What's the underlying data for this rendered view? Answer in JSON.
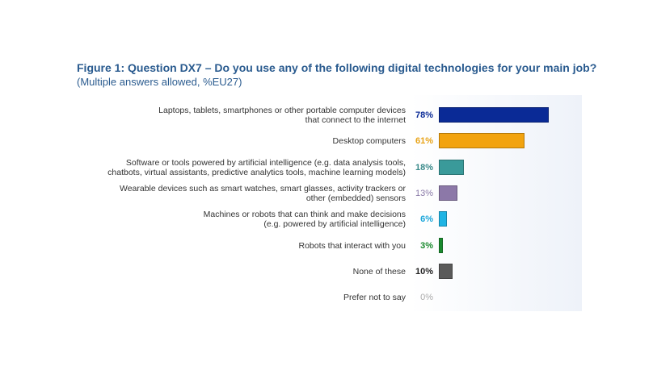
{
  "chart_data": {
    "type": "bar",
    "orientation": "horizontal",
    "title": "Figure 1: Question DX7 – Do you use any of the following digital technologies for your main job?",
    "subtitle": "(Multiple answers allowed, %EU27)",
    "categories": [
      [
        "Laptops, tablets, smartphones or other portable computer devices",
        "that connect to the internet"
      ],
      [
        "Desktop computers"
      ],
      [
        "Software or tools powered by artificial intelligence (e.g. data analysis tools,",
        "chatbots, virtual assistants, predictive analytics tools, machine learning models)"
      ],
      [
        "Wearable devices such as smart watches, smart glasses, activity trackers or",
        "other (embedded) sensors"
      ],
      [
        "Machines or robots that can think and make decisions",
        "(e.g. powered by artificial intelligence)"
      ],
      [
        "Robots that interact with you"
      ],
      [
        "None of these"
      ],
      [
        "Prefer not to say"
      ]
    ],
    "values": [
      78,
      61,
      18,
      13,
      6,
      3,
      10,
      0
    ],
    "value_labels": [
      "78%",
      "61%",
      "18%",
      "13%",
      "6%",
      "3%",
      "10%",
      "0%"
    ],
    "colors": [
      "#0a2a96",
      "#f2a30f",
      "#3a9a9a",
      "#8c78a8",
      "#1fb4e4",
      "#1a8a2e",
      "#5a5a5a",
      "#bdbdbd"
    ],
    "label_colors": [
      "#0a2a96",
      "#e8a317",
      "#3a8a8a",
      "#8a7aa8",
      "#1aa6da",
      "#1a8a2e",
      "#222222",
      "#aaaaaa"
    ],
    "xlim": [
      0,
      100
    ],
    "grid": false,
    "legend": "none"
  }
}
